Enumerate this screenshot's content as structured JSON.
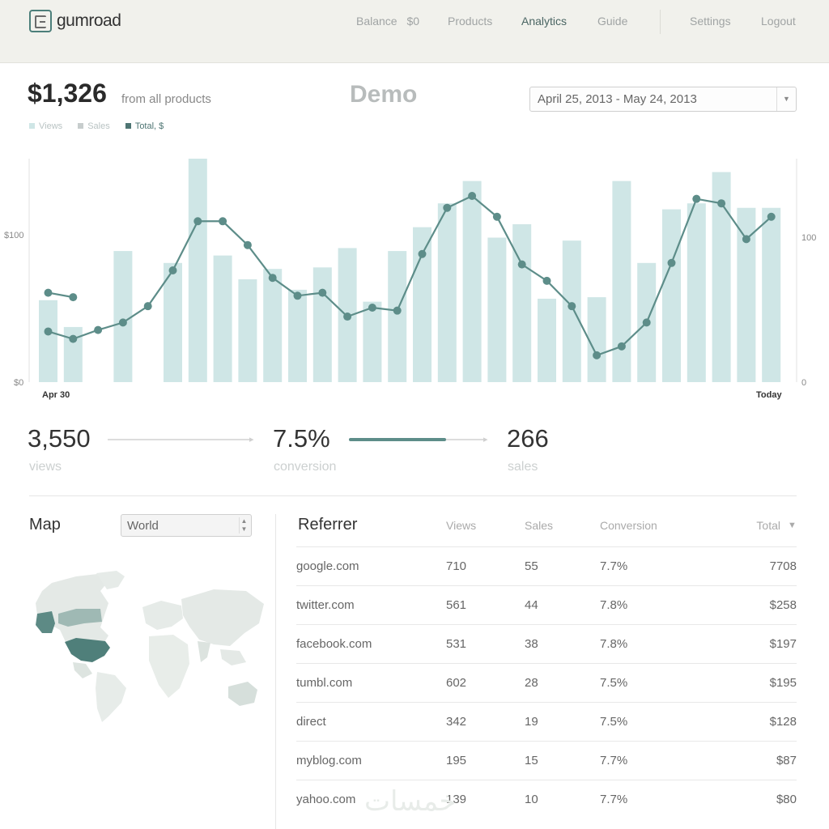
{
  "header": {
    "logo_text": "gumroad",
    "nav": [
      {
        "label": "Balance",
        "value": "$0"
      },
      {
        "label": "Products"
      },
      {
        "label": "Analytics",
        "active": true
      },
      {
        "label": "Guide"
      },
      {
        "label": "Settings"
      },
      {
        "label": "Logout"
      }
    ]
  },
  "summary": {
    "revenue": "$1,326",
    "revenue_sub": "from all products",
    "demo_label": "Demo",
    "date_range": "April 25, 2013 - May 24, 2013"
  },
  "legend": [
    {
      "label": "Views",
      "color": "#cfe6e6"
    },
    {
      "label": "Sales",
      "color": "#c7cdcd"
    },
    {
      "label": "Total, $",
      "color": "#4e7573"
    }
  ],
  "chart_data": {
    "type": "bar+line",
    "x_start_label": "Apr 30",
    "x_end_label": "Today",
    "left_axis_ticks": [
      "$0",
      "$100"
    ],
    "right_axis_ticks": [
      "0",
      "100"
    ],
    "left_ylim": [
      0,
      150
    ],
    "right_ylim": [
      0,
      150
    ],
    "series": [
      {
        "name": "Views",
        "kind": "bar",
        "color": "#cfe6e6",
        "values": [
          55,
          37,
          0,
          88,
          0,
          80,
          150,
          85,
          69,
          76,
          62,
          77,
          90,
          54,
          88,
          104,
          120,
          135,
          97,
          106,
          56,
          95,
          57,
          135,
          80,
          116,
          120,
          141,
          117,
          117
        ]
      },
      {
        "name": "Total, $",
        "kind": "line",
        "color": "#5d8d89",
        "values": [
          34,
          29,
          35,
          40,
          51,
          75,
          108,
          108,
          92,
          70,
          58,
          60,
          44,
          50,
          48,
          86,
          117,
          125,
          111,
          79,
          68,
          51,
          18,
          24,
          40,
          80,
          123,
          120,
          96,
          111
        ],
        "extra_segment": {
          "start_index": 0,
          "values": [
            60,
            57
          ]
        }
      }
    ]
  },
  "stats": [
    {
      "value": "3,550",
      "label": "views"
    },
    {
      "value": "7.5%",
      "label": "conversion",
      "progress": 0.72
    },
    {
      "value": "266",
      "label": "sales"
    }
  ],
  "map": {
    "title": "Map",
    "region": "World"
  },
  "referrers": {
    "columns": [
      "Referrer",
      "Views",
      "Sales",
      "Conversion",
      "Total"
    ],
    "sort_indicator": "▼",
    "rows": [
      {
        "ref": "google.com",
        "views": "710",
        "sales": "55",
        "conv": "7.7%",
        "total": "7708"
      },
      {
        "ref": "twitter.com",
        "views": "561",
        "sales": "44",
        "conv": "7.8%",
        "total": "$258"
      },
      {
        "ref": "facebook.com",
        "views": "531",
        "sales": "38",
        "conv": "7.8%",
        "total": "$197"
      },
      {
        "ref": "tumbl.com",
        "views": "602",
        "sales": "28",
        "conv": "7.5%",
        "total": "$195"
      },
      {
        "ref": "direct",
        "views": "342",
        "sales": "19",
        "conv": "7.5%",
        "total": "$128"
      },
      {
        "ref": "myblog.com",
        "views": "195",
        "sales": "15",
        "conv": "7.7%",
        "total": "$87"
      },
      {
        "ref": "yahoo.com",
        "views": "139",
        "sales": "10",
        "conv": "7.7%",
        "total": "$80"
      }
    ]
  },
  "watermark": "خمسات"
}
